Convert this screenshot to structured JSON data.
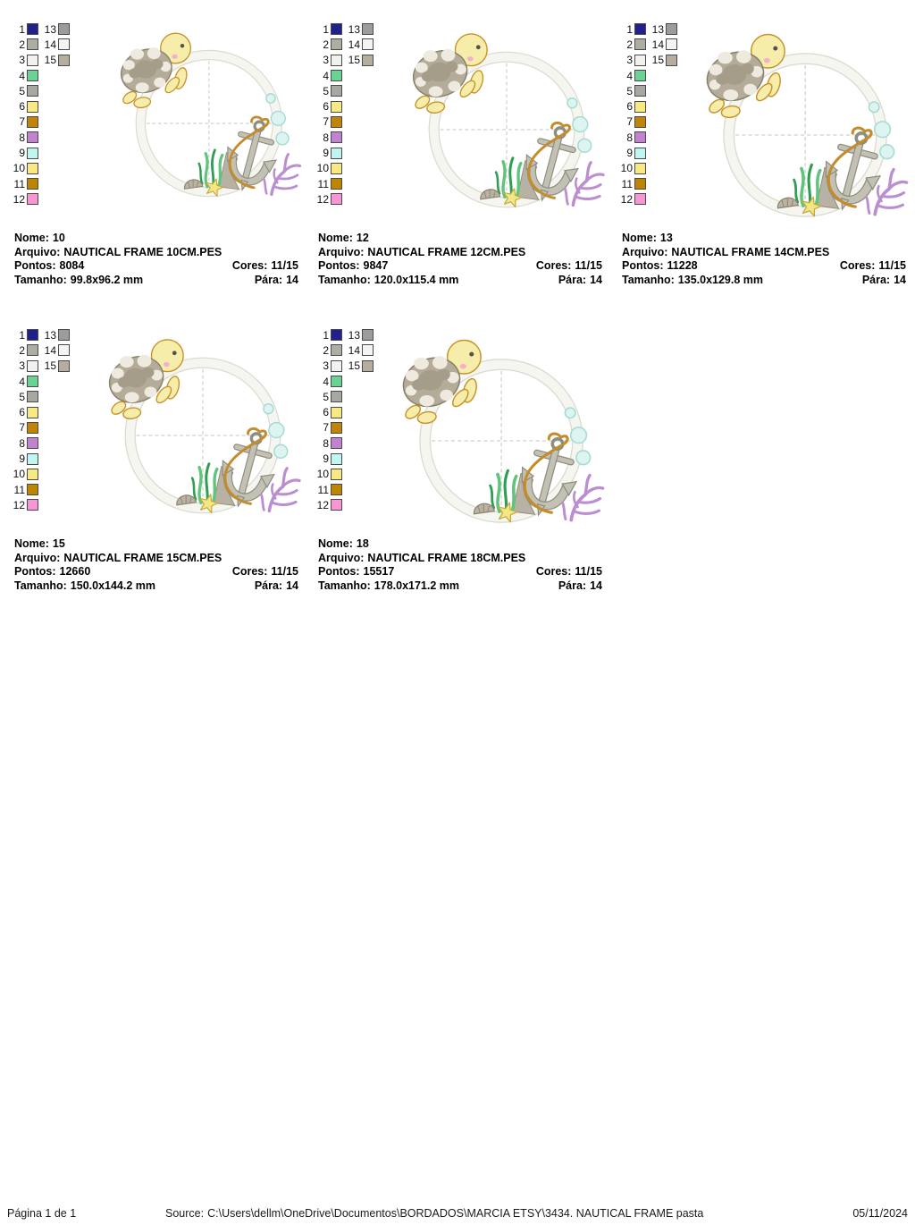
{
  "labels": {
    "nome": "Nome:",
    "arquivo": "Arquivo:",
    "pontos": "Pontos:",
    "cores": "Cores:",
    "tamanho": "Tamanho:",
    "para": "Pára:"
  },
  "designs": [
    {
      "nome": "10",
      "arquivo": "NAUTICAL FRAME 10CM.PES",
      "pontos": "8084",
      "cores": "11/15",
      "tamanho": "99.8x96.2 mm",
      "para": "14"
    },
    {
      "nome": "12",
      "arquivo": "NAUTICAL FRAME 12CM.PES",
      "pontos": "9847",
      "cores": "11/15",
      "tamanho": "120.0x115.4 mm",
      "para": "14"
    },
    {
      "nome": "13",
      "arquivo": "NAUTICAL FRAME 14CM.PES",
      "pontos": "11228",
      "cores": "11/15",
      "tamanho": "135.0x129.8 mm",
      "para": "14"
    },
    {
      "nome": "15",
      "arquivo": "NAUTICAL FRAME 15CM.PES",
      "pontos": "12660",
      "cores": "11/15",
      "tamanho": "150.0x144.2 mm",
      "para": "14"
    },
    {
      "nome": "18",
      "arquivo": "NAUTICAL FRAME 18CM.PES",
      "pontos": "15517",
      "cores": "11/15",
      "tamanho": "178.0x171.2 mm",
      "para": "14"
    }
  ],
  "palette": {
    "swatches": [
      {
        "num": "1",
        "color": "#21218c"
      },
      {
        "num": "2",
        "color": "#adada1"
      },
      {
        "num": "3",
        "color": "#f1f1ef"
      },
      {
        "num": "4",
        "color": "#6ad393"
      },
      {
        "num": "5",
        "color": "#a8a8a2"
      },
      {
        "num": "6",
        "color": "#f8e982"
      },
      {
        "num": "7",
        "color": "#c08508"
      },
      {
        "num": "8",
        "color": "#c183cf"
      },
      {
        "num": "9",
        "color": "#c0f6f1"
      },
      {
        "num": "10",
        "color": "#f8e982"
      },
      {
        "num": "11",
        "color": "#bd8500"
      },
      {
        "num": "12",
        "color": "#f795d5"
      },
      {
        "num": "13",
        "color": "#9c9c9c"
      },
      {
        "num": "14",
        "color": "#f4f4f4"
      },
      {
        "num": "15",
        "color": "#b5ad9d"
      }
    ]
  },
  "footer": {
    "page_label": "Página 1 de 1",
    "source_label": "Source:",
    "source_path": "C:\\Users\\dellm\\OneDrive\\Documentos\\BORDADOS\\MARCIA ETSY\\3434. NAUTICAL FRAME pasta",
    "date": "05/11/2024"
  },
  "artwork_colors": {
    "ring": "#f6f6f1",
    "ring_outline": "#dbdbd1",
    "turtle_body": "#f7edaa",
    "turtle_outline": "#c6932a",
    "shell": "#b4ac98",
    "bubble": "#def4f1",
    "seaweed": "#5fc47c",
    "anchor": "#c3c0b4",
    "rope": "#c48d2b",
    "coral": "#bb8ed1",
    "starfish": "#f2e785"
  }
}
